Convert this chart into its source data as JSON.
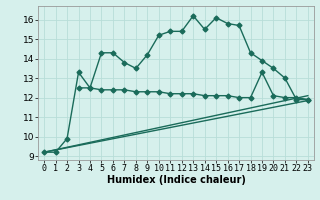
{
  "xlabel": "Humidex (Indice chaleur)",
  "background_color": "#d6f0ec",
  "grid_color": "#b8ddd8",
  "line_color": "#1a6b5a",
  "xlim_min": -0.5,
  "xlim_max": 23.5,
  "ylim_min": 8.8,
  "ylim_max": 16.7,
  "xticks": [
    0,
    1,
    2,
    3,
    4,
    5,
    6,
    7,
    8,
    9,
    10,
    11,
    12,
    13,
    14,
    15,
    16,
    17,
    18,
    19,
    20,
    21,
    22,
    23
  ],
  "yticks": [
    9,
    10,
    11,
    12,
    13,
    14,
    15,
    16
  ],
  "line1_x": [
    0,
    1,
    2,
    3,
    4,
    5,
    6,
    7,
    8,
    9,
    10,
    11,
    12,
    13,
    14,
    15,
    16,
    17,
    18,
    19,
    20,
    21,
    22,
    23
  ],
  "line1_y": [
    9.2,
    9.2,
    9.9,
    13.3,
    12.5,
    14.3,
    14.3,
    13.8,
    13.5,
    14.2,
    15.2,
    15.4,
    15.4,
    16.2,
    15.5,
    16.1,
    15.8,
    15.7,
    14.3,
    13.9,
    13.5,
    13.0,
    11.9,
    11.9
  ],
  "line2_x": [
    3,
    4,
    5,
    6,
    7,
    8,
    9,
    10,
    11,
    12,
    13,
    14,
    15,
    16,
    17,
    18,
    19,
    20,
    21,
    22,
    23
  ],
  "line2_y": [
    12.5,
    12.5,
    12.4,
    12.4,
    12.4,
    12.3,
    12.3,
    12.3,
    12.2,
    12.2,
    12.2,
    12.1,
    12.1,
    12.1,
    12.0,
    12.0,
    13.3,
    12.1,
    12.0,
    12.0,
    11.9
  ],
  "line3_x": [
    0,
    23
  ],
  "line3_y": [
    9.2,
    12.1
  ],
  "line4_x": [
    0,
    23
  ],
  "line4_y": [
    9.2,
    11.85
  ],
  "marker": "D",
  "marker_size": 2.5,
  "linewidth": 1.0,
  "xlabel_fontsize": 7,
  "tick_fontsize": 6.0,
  "ytick_fontsize": 6.5
}
